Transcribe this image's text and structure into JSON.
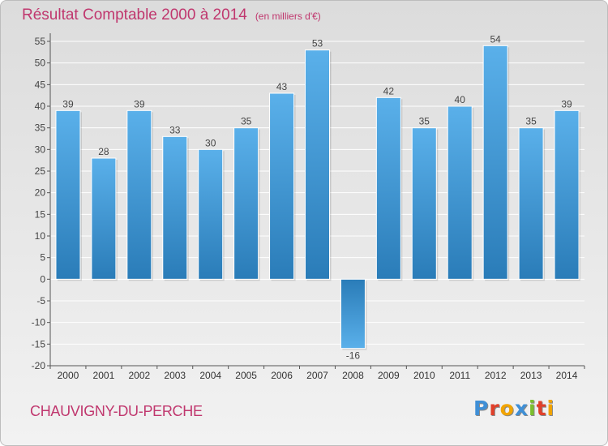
{
  "page": {
    "title": "Résultat Comptable 2000 à 2014",
    "unit": "(en milliers d'€)",
    "commune": "CHAUVIGNY-DU-PERCHE",
    "logo_text": "Proxiti",
    "logo_colors": [
      "#3f8fd6",
      "#e0402a",
      "#f2a400",
      "#3f8fd6",
      "#7cbf2e",
      "#e0402a",
      "#f2a400"
    ]
  },
  "colors": {
    "title": "#c0376e",
    "bar_light": "#5ab0ea",
    "bar_dark": "#2a7cb8",
    "grid": "#ffffff",
    "axis": "#555555"
  },
  "chart_data": {
    "type": "bar",
    "title": "Résultat Comptable 2000 à 2014",
    "ylabel": "(en milliers d'€)",
    "categories": [
      "2000",
      "2001",
      "2002",
      "2003",
      "2004",
      "2005",
      "2006",
      "2007",
      "2008",
      "2009",
      "2010",
      "2011",
      "2012",
      "2013",
      "2014"
    ],
    "values": [
      39,
      28,
      39,
      33,
      30,
      35,
      43,
      53,
      -16,
      42,
      35,
      40,
      54,
      35,
      39
    ],
    "ylim": [
      -20,
      55
    ],
    "yticks": [
      -20,
      -15,
      -10,
      -5,
      0,
      5,
      10,
      15,
      20,
      25,
      30,
      35,
      40,
      45,
      50,
      55
    ],
    "grid": true,
    "legend": "none"
  }
}
